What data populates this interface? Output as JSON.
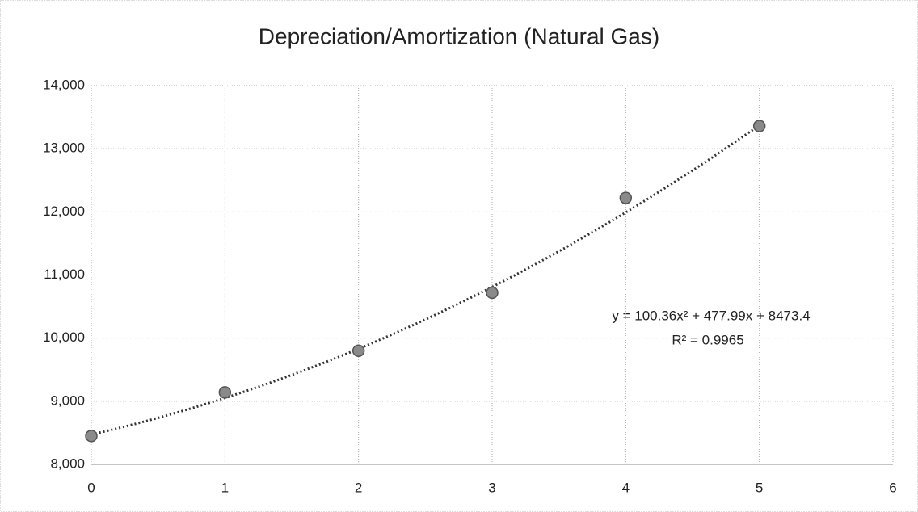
{
  "chart_data": {
    "type": "scatter",
    "title": "Depreciation/Amortization (Natural Gas)",
    "x": [
      0,
      1,
      2,
      3,
      4,
      5
    ],
    "series": [
      {
        "color": "#8a8a8a",
        "values": [
          8450,
          9140,
          9800,
          10720,
          12220,
          13360
        ]
      }
    ],
    "xlim": [
      0,
      6
    ],
    "xticks": [
      0,
      1,
      2,
      3,
      4,
      5,
      6
    ],
    "ylim": [
      8000,
      14000
    ],
    "yticks": [
      {
        "value": 8000,
        "label": "8,000"
      },
      {
        "value": 9000,
        "label": "9,000"
      },
      {
        "value": 10000,
        "label": "10,000"
      },
      {
        "value": 11000,
        "label": "11,000"
      },
      {
        "value": 12000,
        "label": "12,000"
      },
      {
        "value": 13000,
        "label": "13,000"
      },
      {
        "value": 14000,
        "label": "14,000"
      }
    ],
    "grid": true,
    "trendline": {
      "coefficients": [
        100.36,
        477.99,
        8473.4
      ],
      "color": "#333333",
      "equation": "y = 100.36x² + 477.99x + 8473.4",
      "r_squared": "R² = 0.9965"
    }
  }
}
